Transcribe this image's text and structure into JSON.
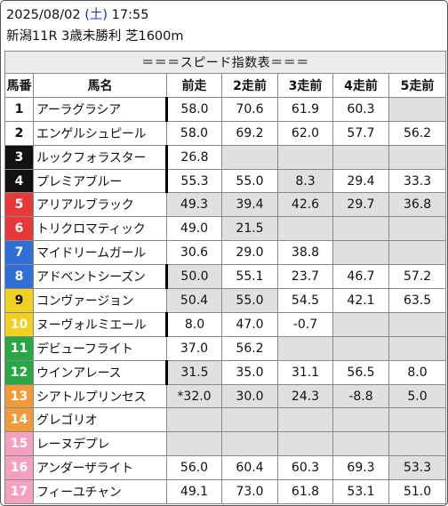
{
  "header": {
    "date": "2025/08/02",
    "dow_open": "(",
    "dow": "土",
    "dow_close": ")",
    "time": "17:55",
    "race": "新潟11R 3歳未勝利 芝1600m"
  },
  "table": {
    "title": "＝＝＝スピード指数表＝＝＝",
    "columns": [
      "馬番",
      "馬名",
      "前走",
      "2走前",
      "3走前",
      "4走前",
      "5走前"
    ],
    "rows": [
      {
        "num": "1",
        "name": "アーラグラシア",
        "v": [
          "58.0",
          "70.6",
          "61.9",
          "60.3",
          ""
        ],
        "gray": [
          false,
          false,
          false,
          false,
          true
        ],
        "bar": true
      },
      {
        "num": "2",
        "name": "エンゲルシュピール",
        "v": [
          "58.0",
          "69.2",
          "62.0",
          "57.7",
          "56.2"
        ],
        "gray": [
          false,
          false,
          false,
          false,
          false
        ],
        "bar": false
      },
      {
        "num": "3",
        "name": "ルックフォラスター",
        "v": [
          "26.8",
          "",
          "",
          "",
          ""
        ],
        "gray": [
          false,
          true,
          true,
          true,
          true
        ],
        "bar": true
      },
      {
        "num": "4",
        "name": "プレミアブルー",
        "v": [
          "55.3",
          "55.0",
          "8.3",
          "29.4",
          "33.3"
        ],
        "gray": [
          false,
          false,
          true,
          false,
          false
        ],
        "bar": true
      },
      {
        "num": "5",
        "name": "アリアルブラック",
        "v": [
          "49.3",
          "39.4",
          "42.6",
          "29.7",
          "36.8"
        ],
        "gray": [
          true,
          true,
          true,
          true,
          true
        ],
        "bar": false
      },
      {
        "num": "6",
        "name": "トリクロマティック",
        "v": [
          "49.0",
          "21.5",
          "",
          "",
          ""
        ],
        "gray": [
          false,
          true,
          true,
          true,
          true
        ],
        "bar": false
      },
      {
        "num": "7",
        "name": "マイドリームガール",
        "v": [
          "30.6",
          "29.0",
          "38.8",
          "",
          ""
        ],
        "gray": [
          false,
          false,
          false,
          true,
          true
        ],
        "bar": false
      },
      {
        "num": "8",
        "name": "アドベントシーズン",
        "v": [
          "50.0",
          "55.1",
          "23.7",
          "46.7",
          "57.2"
        ],
        "gray": [
          true,
          false,
          false,
          false,
          false
        ],
        "bar": true
      },
      {
        "num": "9",
        "name": "コンヴァージョン",
        "v": [
          "50.4",
          "55.0",
          "54.5",
          "42.1",
          "63.5"
        ],
        "gray": [
          true,
          true,
          false,
          false,
          false
        ],
        "bar": false
      },
      {
        "num": "10",
        "name": "ヌーヴォルミエール",
        "v": [
          "8.0",
          "47.0",
          "-0.7",
          "",
          ""
        ],
        "gray": [
          false,
          false,
          false,
          true,
          true
        ],
        "bar": true
      },
      {
        "num": "11",
        "name": "デビューフライト",
        "v": [
          "37.0",
          "56.2",
          "",
          "",
          ""
        ],
        "gray": [
          false,
          false,
          true,
          true,
          true
        ],
        "bar": false
      },
      {
        "num": "12",
        "name": "ウインアレース",
        "v": [
          "31.5",
          "35.0",
          "31.1",
          "56.5",
          "8.0"
        ],
        "gray": [
          true,
          false,
          false,
          false,
          false
        ],
        "bar": true
      },
      {
        "num": "13",
        "name": "シアトルプリンセス",
        "v": [
          "*32.0",
          "30.0",
          "24.3",
          "-8.8",
          "5.0"
        ],
        "gray": [
          true,
          true,
          true,
          true,
          true
        ],
        "bar": false
      },
      {
        "num": "14",
        "name": "グレゴリオ",
        "v": [
          "",
          "",
          "",
          "",
          ""
        ],
        "gray": [
          true,
          true,
          true,
          true,
          true
        ],
        "bar": false
      },
      {
        "num": "15",
        "name": "レーヌデプレ",
        "v": [
          "",
          "",
          "",
          "",
          ""
        ],
        "gray": [
          true,
          true,
          true,
          true,
          true
        ],
        "bar": false
      },
      {
        "num": "16",
        "name": "アンダーザライト",
        "v": [
          "56.0",
          "60.4",
          "60.3",
          "69.3",
          "53.3"
        ],
        "gray": [
          false,
          false,
          false,
          false,
          true
        ],
        "bar": false
      },
      {
        "num": "17",
        "name": "フィーユチャン",
        "v": [
          "49.1",
          "73.0",
          "61.8",
          "53.1",
          "51.0"
        ],
        "gray": [
          false,
          false,
          false,
          false,
          false
        ],
        "bar": false
      }
    ]
  }
}
